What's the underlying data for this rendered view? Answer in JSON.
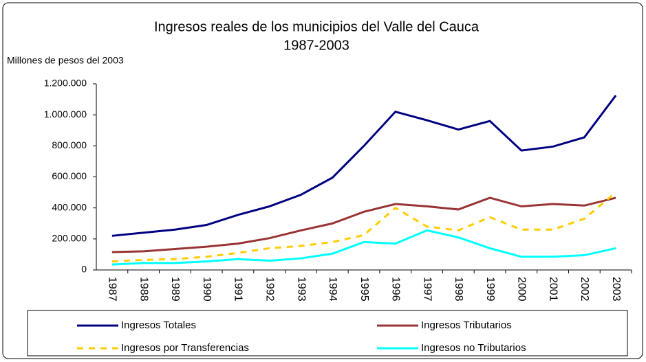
{
  "chart_data": {
    "type": "line",
    "title": [
      "Ingresos reales de los municipios del Valle del Cauca",
      "1987-2003"
    ],
    "y_label": "Millones de pesos  del 2003",
    "categories": [
      "1987",
      "1988",
      "1989",
      "1990",
      "1991",
      "1992",
      "1993",
      "1994",
      "1995",
      "1996",
      "1997",
      "1998",
      "1999",
      "2000",
      "2001",
      "2002",
      "2003"
    ],
    "series": [
      {
        "name": "Ingresos Totales",
        "color": "#000080",
        "style": "solid",
        "values": [
          220000,
          240000,
          260000,
          290000,
          355000,
          410000,
          485000,
          595000,
          800000,
          1020000,
          965000,
          905000,
          960000,
          770000,
          795000,
          855000,
          1125000
        ]
      },
      {
        "name": "Ingresos Tributarios",
        "color": "#993333",
        "style": "solid",
        "values": [
          115000,
          120000,
          135000,
          150000,
          170000,
          205000,
          255000,
          300000,
          375000,
          425000,
          410000,
          390000,
          465000,
          410000,
          425000,
          415000,
          465000
        ]
      },
      {
        "name": "Ingresos por Transferencias",
        "color": "#FFCC00",
        "style": "dashed",
        "values": [
          55000,
          65000,
          70000,
          85000,
          110000,
          140000,
          155000,
          180000,
          225000,
          400000,
          280000,
          255000,
          340000,
          260000,
          260000,
          330000,
          500000
        ]
      },
      {
        "name": "Ingresos no Tributarios",
        "color": "#00FFFF",
        "style": "solid",
        "values": [
          35000,
          45000,
          45000,
          55000,
          70000,
          60000,
          75000,
          105000,
          180000,
          170000,
          255000,
          210000,
          140000,
          85000,
          85000,
          95000,
          140000
        ]
      }
    ],
    "ylim": [
      0,
      1200000
    ],
    "yticks": [
      0,
      {
        "value": 200000,
        "label": "200.000"
      },
      {
        "value": 400000,
        "label": "400.000"
      },
      {
        "value": 600000,
        "label": "600.000"
      },
      {
        "value": 800000,
        "label": "800.000"
      },
      {
        "value": 1000000,
        "label": "1.000.000"
      },
      {
        "value": 1200000,
        "label": "1.200.000"
      }
    ],
    "grid": false,
    "legend": "bottom"
  }
}
